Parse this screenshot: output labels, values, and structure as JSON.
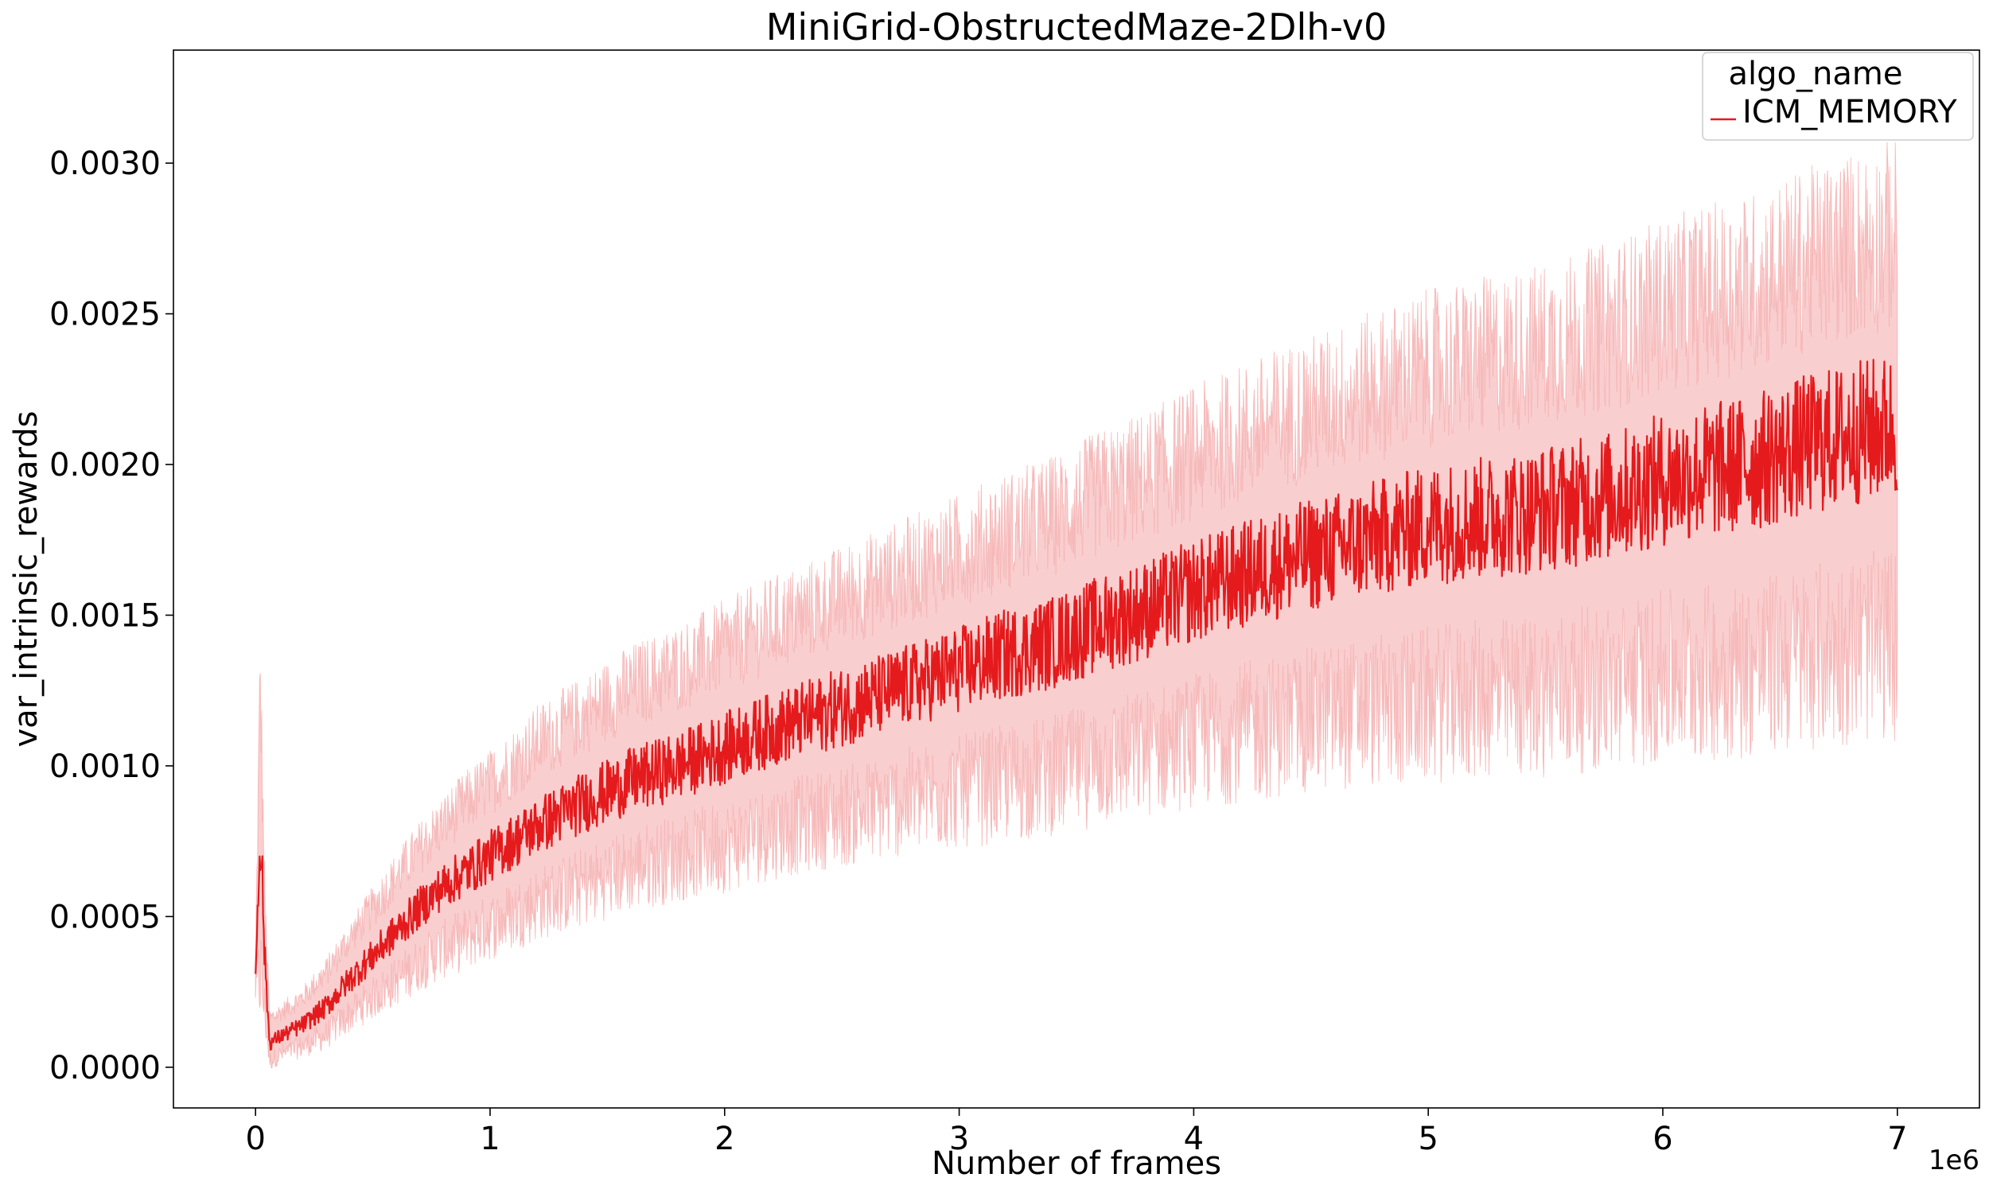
{
  "chart_data": {
    "type": "line",
    "title": "MiniGrid-ObstructedMaze-2Dlh-v0",
    "xlabel": "Number of frames",
    "ylabel": "var_intrinsic_rewards",
    "x_offset_label": "1e6",
    "x_scale_multiplier": 1000000,
    "xlim": [
      -350000,
      7350000
    ],
    "ylim": [
      -0.000135,
      0.003375
    ],
    "xticks": [
      0,
      1000000,
      2000000,
      3000000,
      4000000,
      5000000,
      6000000,
      7000000
    ],
    "xtick_labels": [
      "0",
      "1",
      "2",
      "3",
      "4",
      "5",
      "6",
      "7"
    ],
    "yticks": [
      0,
      0.0005,
      0.001,
      0.0015,
      0.002,
      0.0025,
      0.003
    ],
    "ytick_labels": [
      "0.0000",
      "0.0005",
      "0.0010",
      "0.0015",
      "0.0020",
      "0.0025",
      "0.0030"
    ],
    "grid": false,
    "legend": {
      "title": "algo_name",
      "placement": "top-right"
    },
    "series": [
      {
        "name": "ICM_MEMORY",
        "color": "#e41a1c",
        "band_color": "#f4a6a7",
        "x": [
          0,
          20000,
          40000,
          60000,
          100000,
          200000,
          300000,
          400000,
          500000,
          600000,
          700000,
          800000,
          900000,
          1000000,
          1200000,
          1400000,
          1600000,
          1800000,
          2000000,
          2200000,
          2400000,
          2600000,
          2800000,
          3000000,
          3200000,
          3400000,
          3600000,
          3800000,
          4000000,
          4200000,
          4400000,
          4600000,
          4800000,
          5000000,
          5200000,
          5400000,
          5600000,
          5800000,
          6000000,
          6200000,
          6400000,
          6600000,
          6800000,
          7000000
        ],
        "y": [
          0.0003,
          0.00082,
          0.00035,
          8e-05,
          0.0001,
          0.00014,
          0.0002,
          0.00029,
          0.00037,
          0.00045,
          0.00053,
          0.0006,
          0.00065,
          0.0007,
          0.0008,
          0.00088,
          0.00095,
          0.001,
          0.00106,
          0.00112,
          0.00117,
          0.00122,
          0.00127,
          0.00132,
          0.00137,
          0.00141,
          0.00147,
          0.00152,
          0.00158,
          0.00163,
          0.00168,
          0.00172,
          0.00176,
          0.0018,
          0.00182,
          0.00184,
          0.00187,
          0.0019,
          0.00195,
          0.00198,
          0.00201,
          0.00206,
          0.0021,
          0.00213
        ],
        "band_lower": [
          0.00025,
          0.0004,
          0.0002,
          3e-05,
          5e-05,
          8e-05,
          0.00012,
          0.00019,
          0.00025,
          0.00031,
          0.00037,
          0.00042,
          0.00046,
          0.0005,
          0.00058,
          0.00064,
          0.0007,
          0.00074,
          0.00078,
          0.00083,
          0.00087,
          0.0009,
          0.00094,
          0.00097,
          0.001,
          0.00103,
          0.00107,
          0.00111,
          0.00115,
          0.00118,
          0.00121,
          0.00124,
          0.00126,
          0.00128,
          0.0013,
          0.00131,
          0.00133,
          0.00135,
          0.00138,
          0.0014,
          0.00142,
          0.00145,
          0.00148,
          0.0015
        ],
        "band_upper": [
          0.00035,
          0.00122,
          0.0005,
          0.00015,
          0.00017,
          0.00022,
          0.0003,
          0.00041,
          0.00051,
          0.00061,
          0.0007,
          0.00078,
          0.00085,
          0.00091,
          0.00104,
          0.00113,
          0.00122,
          0.00128,
          0.00135,
          0.00142,
          0.00148,
          0.00154,
          0.0016,
          0.00166,
          0.00172,
          0.00177,
          0.00184,
          0.0019,
          0.00197,
          0.00203,
          0.00209,
          0.00214,
          0.00219,
          0.00224,
          0.00227,
          0.0023,
          0.00234,
          0.00238,
          0.00244,
          0.00248,
          0.00252,
          0.00258,
          0.00263,
          0.00267
        ]
      }
    ]
  }
}
